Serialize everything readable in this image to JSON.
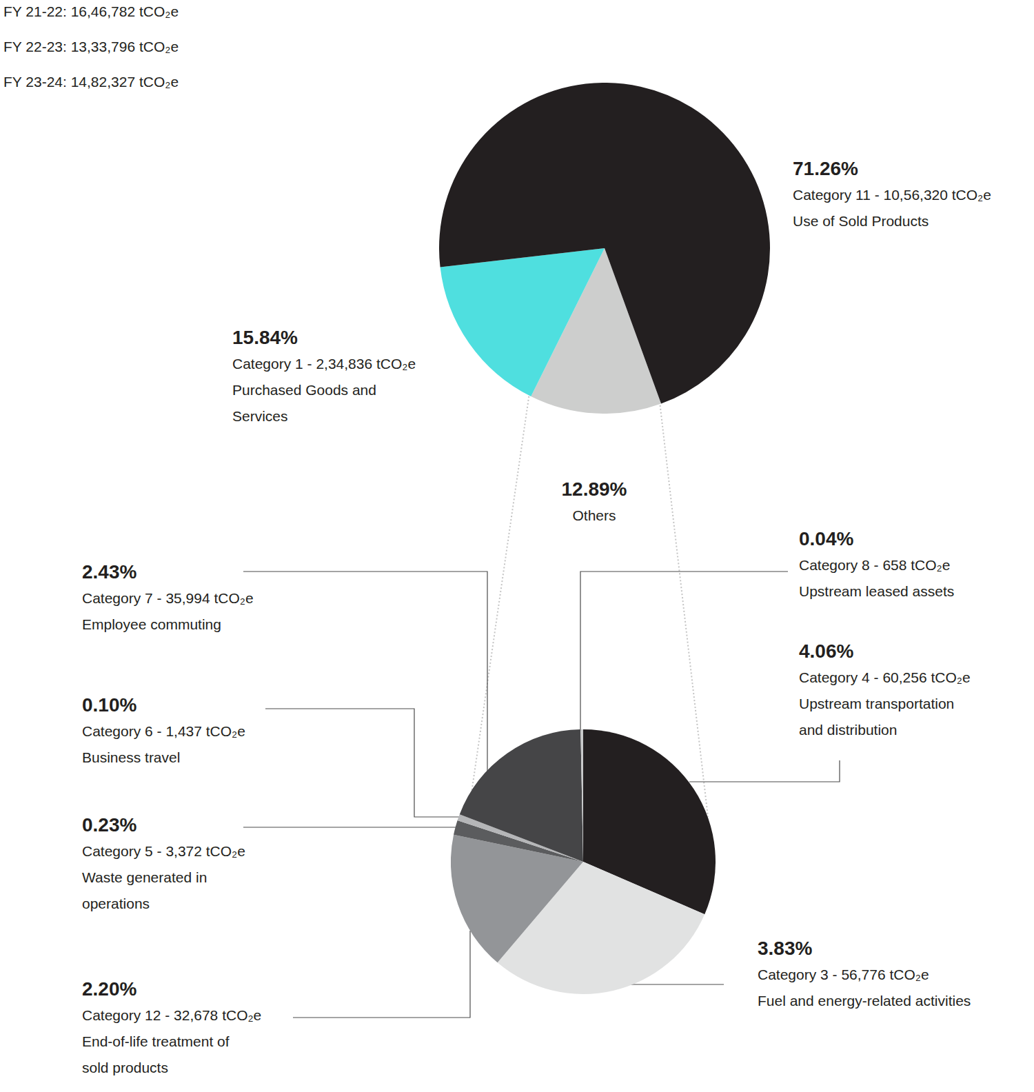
{
  "chart_data": [
    {
      "type": "pie",
      "annotations": [
        "FY 21-22: 16,46,782 tCO₂e",
        "FY 22-23: 13,33,796 tCO₂e",
        "FY 23-24: 14,82,327 tCO₂e"
      ],
      "categories": [
        "Others",
        "Category 1 - 2,34,836 tCO₂e",
        "Category 11 - 10,56,320 tCO₂e"
      ],
      "descriptions": [
        null,
        [
          "Purchased Goods and",
          "Services"
        ],
        [
          "Use of Sold Products"
        ]
      ],
      "values": [
        12.89,
        15.84,
        71.26
      ],
      "value_labels": [
        "12.89%",
        "15.84%",
        "71.26%"
      ],
      "colors": [
        "#cdcecd",
        "#4fdfdf",
        "#231f20"
      ],
      "data_labels": true
    },
    {
      "type": "pie",
      "categories": [
        "Category 4 - 60,256 tCO₂e",
        "Category 3 - 56,776 tCO₂e",
        "Category 12 - 32,678 tCO₂e",
        "Category 5 - 3,372 tCO₂e",
        "Category 6 - 1,437 tCO₂e",
        "Category 7 - 35,994 tCO₂e",
        "Category 8 - 658 tCO₂e"
      ],
      "descriptions": [
        [
          "Upstream transportation",
          "and distribution"
        ],
        [
          "Fuel and energy-related activities"
        ],
        [
          "End-of-life treatment of",
          "sold products"
        ],
        [
          "Waste generated in",
          "operations"
        ],
        [
          "Business travel"
        ],
        [
          "Employee commuting"
        ],
        [
          "Upstream leased assets"
        ]
      ],
      "values": [
        4.06,
        3.83,
        2.2,
        0.23,
        0.1,
        2.43,
        0.04
      ],
      "value_labels": [
        "4.06%",
        "3.83%",
        "2.20%",
        "0.23%",
        "0.10%",
        "2.43%",
        "0.04%"
      ],
      "colors": [
        "#231f20",
        "#e1e2e2",
        "#939598",
        "#5b5c5e",
        "#b5b6b8",
        "#454547",
        "#c9cacb"
      ],
      "data_labels": true
    }
  ]
}
